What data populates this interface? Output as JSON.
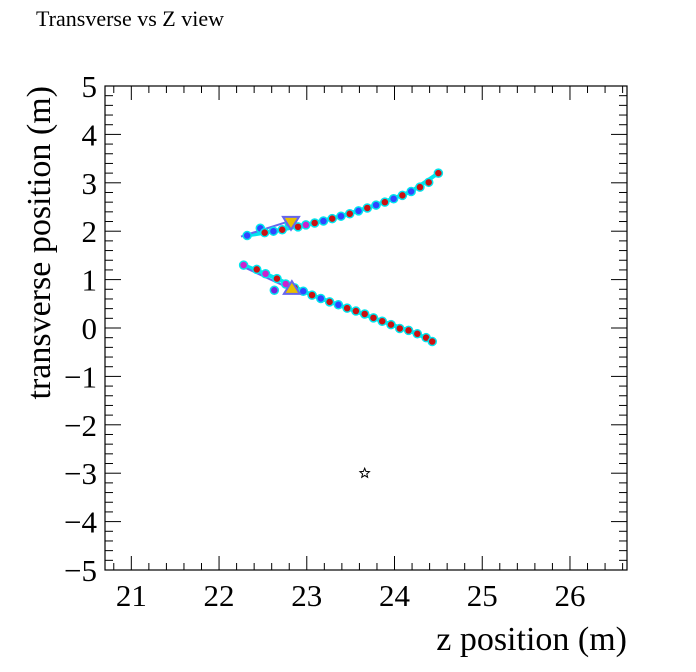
{
  "title": "Transverse vs Z view",
  "chart_data": {
    "type": "scatter",
    "title": "Transverse vs Z view",
    "xlabel": "z position (m)",
    "ylabel": "transverse position (m)",
    "xlim": [
      20.7,
      26.65
    ],
    "ylim": [
      -5,
      5
    ],
    "x_ticks": [
      21,
      22,
      23,
      24,
      25,
      26
    ],
    "y_ticks": [
      -5,
      -4,
      -3,
      -2,
      -1,
      0,
      1,
      2,
      3,
      4,
      5
    ],
    "grid": false,
    "legend": "none",
    "colors": {
      "track_line": "#00e5ee",
      "hit_fill_red": "#cc1111",
      "hit_fill_blue": "#3344ff",
      "hit_fill_magenta": "#cc22cc",
      "hit_fill_purple": "#7722dd",
      "arrow": "#6666ee",
      "vertex_marker": "#e8c000"
    },
    "series": [
      {
        "points": [
          {
            "x": 22.32,
            "y": 1.91,
            "c": "blue"
          },
          {
            "x": 22.47,
            "y": 2.06,
            "c": "blue"
          },
          {
            "x": 22.52,
            "y": 1.97,
            "c": "red"
          },
          {
            "x": 22.62,
            "y": 2.0,
            "c": "blue"
          },
          {
            "x": 22.72,
            "y": 2.03,
            "c": "red"
          },
          {
            "x": 22.8,
            "y": 2.16,
            "c": "magenta"
          },
          {
            "x": 22.9,
            "y": 2.09,
            "c": "red"
          },
          {
            "x": 22.99,
            "y": 2.13,
            "c": "magenta"
          },
          {
            "x": 23.09,
            "y": 2.17,
            "c": "red"
          },
          {
            "x": 23.19,
            "y": 2.21,
            "c": "blue"
          },
          {
            "x": 23.29,
            "y": 2.26,
            "c": "red"
          },
          {
            "x": 23.39,
            "y": 2.31,
            "c": "blue"
          },
          {
            "x": 23.49,
            "y": 2.36,
            "c": "red"
          },
          {
            "x": 23.59,
            "y": 2.42,
            "c": "blue"
          },
          {
            "x": 23.69,
            "y": 2.48,
            "c": "red"
          },
          {
            "x": 23.79,
            "y": 2.54,
            "c": "blue"
          },
          {
            "x": 23.89,
            "y": 2.6,
            "c": "red"
          },
          {
            "x": 23.99,
            "y": 2.67,
            "c": "blue"
          },
          {
            "x": 24.09,
            "y": 2.74,
            "c": "red"
          },
          {
            "x": 24.19,
            "y": 2.82,
            "c": "blue"
          },
          {
            "x": 24.29,
            "y": 2.91,
            "c": "red"
          },
          {
            "x": 24.39,
            "y": 3.01,
            "c": "red"
          },
          {
            "x": 24.5,
            "y": 3.2,
            "c": "red"
          }
        ]
      },
      {
        "points": [
          {
            "x": 22.28,
            "y": 1.3,
            "c": "magenta"
          },
          {
            "x": 22.43,
            "y": 1.21,
            "c": "red"
          },
          {
            "x": 22.53,
            "y": 1.12,
            "c": "magenta"
          },
          {
            "x": 22.63,
            "y": 0.78,
            "c": "purple"
          },
          {
            "x": 22.66,
            "y": 1.02,
            "c": "red"
          },
          {
            "x": 22.76,
            "y": 0.91,
            "c": "magenta"
          },
          {
            "x": 22.86,
            "y": 0.83,
            "c": "red"
          },
          {
            "x": 22.96,
            "y": 0.76,
            "c": "blue"
          },
          {
            "x": 23.06,
            "y": 0.68,
            "c": "red"
          },
          {
            "x": 23.16,
            "y": 0.61,
            "c": "blue"
          },
          {
            "x": 23.26,
            "y": 0.54,
            "c": "red"
          },
          {
            "x": 23.36,
            "y": 0.48,
            "c": "blue"
          },
          {
            "x": 23.46,
            "y": 0.41,
            "c": "red"
          },
          {
            "x": 23.56,
            "y": 0.35,
            "c": "red"
          },
          {
            "x": 23.66,
            "y": 0.29,
            "c": "red"
          },
          {
            "x": 23.76,
            "y": 0.21,
            "c": "red"
          },
          {
            "x": 23.86,
            "y": 0.14,
            "c": "red"
          },
          {
            "x": 23.96,
            "y": 0.07,
            "c": "red"
          },
          {
            "x": 24.06,
            "y": -0.01,
            "c": "red"
          },
          {
            "x": 24.16,
            "y": -0.05,
            "c": "red"
          },
          {
            "x": 24.26,
            "y": -0.12,
            "c": "red"
          },
          {
            "x": 24.36,
            "y": -0.2,
            "c": "red"
          },
          {
            "x": 24.43,
            "y": -0.28,
            "c": "red"
          }
        ]
      }
    ],
    "track_lines": [
      [
        [
          22.32,
          1.91
        ],
        [
          22.62,
          2.0
        ],
        [
          22.99,
          2.13
        ],
        [
          23.39,
          2.31
        ],
        [
          23.79,
          2.54
        ],
        [
          24.19,
          2.82
        ],
        [
          24.5,
          3.2
        ]
      ],
      [
        [
          22.28,
          1.3
        ],
        [
          22.66,
          1.02
        ],
        [
          23.06,
          0.68
        ],
        [
          23.46,
          0.41
        ],
        [
          23.86,
          0.14
        ],
        [
          24.26,
          -0.12
        ],
        [
          24.43,
          -0.28
        ]
      ]
    ],
    "direction_arrows": [
      {
        "from": [
          22.25,
          1.89
        ],
        "to": [
          22.86,
          2.24
        ]
      },
      {
        "from": [
          22.28,
          1.26
        ],
        "to": [
          22.85,
          0.78
        ]
      }
    ],
    "vertex_markers": [
      {
        "x": 22.82,
        "y": 2.18,
        "shape": "down-triangle"
      },
      {
        "x": 22.83,
        "y": 0.82,
        "shape": "up-triangle"
      }
    ],
    "extra_points": [
      {
        "x": 23.66,
        "y": -3.0,
        "shape": "star"
      }
    ]
  }
}
